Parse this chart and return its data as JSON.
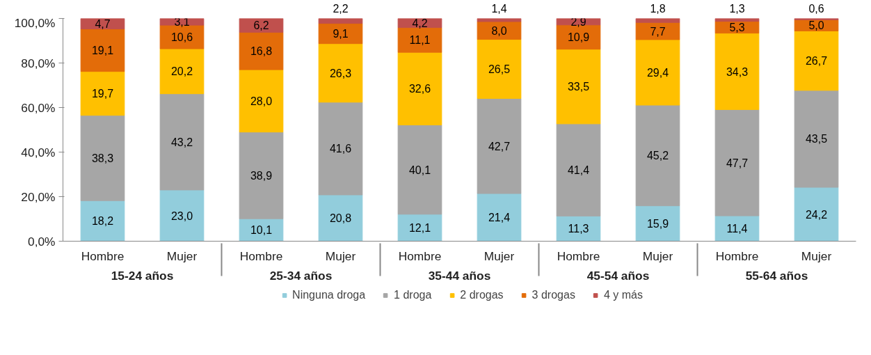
{
  "chart_data": {
    "type": "bar",
    "stacked": true,
    "categories": [
      "Hombre",
      "Mujer",
      "Hombre",
      "Mujer",
      "Hombre",
      "Mujer",
      "Hombre",
      "Mujer",
      "Hombre",
      "Mujer"
    ],
    "annotations": [
      "15-24 años",
      "25-34 años",
      "35-44 años",
      "45-54 años",
      "55-64 años"
    ],
    "series": [
      {
        "name": "Ninguna droga",
        "color": "#92cddc",
        "values": [
          18.2,
          23.0,
          10.1,
          20.8,
          12.1,
          21.4,
          11.3,
          15.9,
          11.4,
          24.2
        ],
        "value_labels": [
          "18,2",
          "23,0",
          "10,1",
          "20,8",
          "12,1",
          "21,4",
          "11,3",
          "15,9",
          "11,4",
          "24,2"
        ]
      },
      {
        "name": "1 droga",
        "color": "#a6a6a6",
        "values": [
          38.3,
          43.2,
          38.9,
          41.6,
          40.1,
          42.7,
          41.4,
          45.2,
          47.7,
          43.5
        ],
        "value_labels": [
          "38,3",
          "43,2",
          "38,9",
          "41,6",
          "40,1",
          "42,7",
          "41,4",
          "45,2",
          "47,7",
          "43,5"
        ]
      },
      {
        "name": "2 drogas",
        "color": "#ffc000",
        "values": [
          19.7,
          20.2,
          28.0,
          26.3,
          32.6,
          26.5,
          33.5,
          29.4,
          34.3,
          26.7
        ],
        "value_labels": [
          "19,7",
          "20,2",
          "28,0",
          "26,3",
          "32,6",
          "26,5",
          "33,5",
          "29,4",
          "34,3",
          "26,7"
        ]
      },
      {
        "name": "3 drogas",
        "color": "#e36c09",
        "values": [
          19.1,
          10.6,
          16.8,
          9.1,
          11.1,
          8.0,
          10.9,
          7.7,
          5.3,
          5.0
        ],
        "value_labels": [
          "19,1",
          "10,6",
          "16,8",
          "9,1",
          "11,1",
          "8,0",
          "10,9",
          "7,7",
          "5,3",
          "5,0"
        ]
      },
      {
        "name": "4 y más",
        "color": "#c0504d",
        "values": [
          4.7,
          3.1,
          6.2,
          2.2,
          4.2,
          1.4,
          2.9,
          1.8,
          1.3,
          0.6
        ],
        "value_labels": [
          "4,7",
          "3,1",
          "6,2",
          "2,2",
          "4,2",
          "1,4",
          "2,9",
          "1,8",
          "1,3",
          "0,6"
        ]
      }
    ],
    "ylim": [
      0,
      100
    ],
    "yticks": [
      {
        "value": 0,
        "label": "0,0%"
      },
      {
        "value": 20,
        "label": "20,0%"
      },
      {
        "value": 40,
        "label": "40,0%"
      },
      {
        "value": 60,
        "label": "60,0%"
      },
      {
        "value": 80,
        "label": "80,0%"
      },
      {
        "value": 100,
        "label": "100,0%"
      }
    ],
    "legend": "bottom"
  }
}
